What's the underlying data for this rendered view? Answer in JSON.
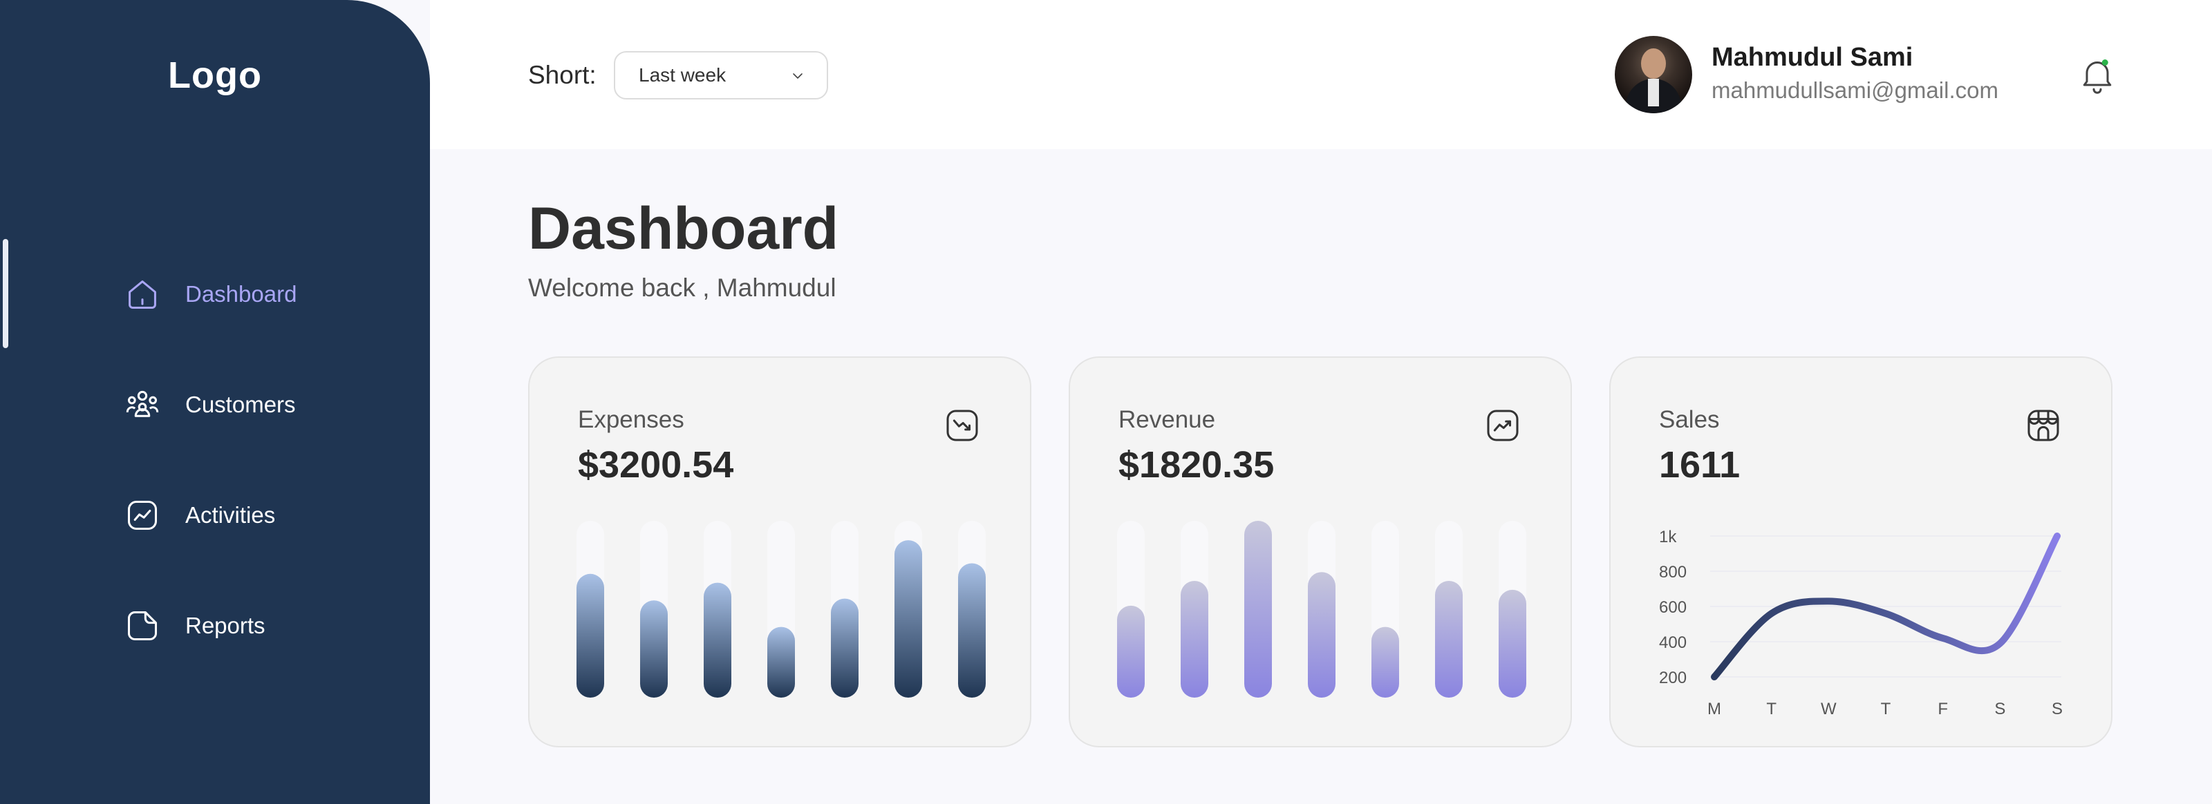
{
  "sidebar": {
    "logo": "Logo",
    "items": [
      {
        "label": "Dashboard",
        "icon": "home-icon",
        "active": true
      },
      {
        "label": "Customers",
        "icon": "users-icon",
        "active": false
      },
      {
        "label": "Activities",
        "icon": "activity-icon",
        "active": false
      },
      {
        "label": "Reports",
        "icon": "report-icon",
        "active": false
      }
    ]
  },
  "header": {
    "sort_label": "Short:",
    "sort_value": "Last week",
    "user_name": "Mahmudul Sami",
    "user_email": "mahmudullsami@gmail.com"
  },
  "main": {
    "title": "Dashboard",
    "subtitle": "Welcome back , Mahmudul"
  },
  "cards": [
    {
      "title": "Expenses",
      "value": "$3200.54",
      "icon": "trend-down-icon"
    },
    {
      "title": "Revenue",
      "value": "$1820.35",
      "icon": "trend-up-icon"
    },
    {
      "title": "Sales",
      "value": "1611",
      "icon": "store-icon"
    }
  ],
  "colors": {
    "sidebar_bg": "#1f3552",
    "active_nav": "#a9a6f5",
    "expenses_bar_top": "#a9c1e6",
    "expenses_bar_bottom": "#1f3552",
    "revenue_bar_top": "#bdbdd6",
    "revenue_bar_bottom": "#8a84e0",
    "sales_line_start": "#2a3a5e",
    "sales_line_end": "#8a7fe8",
    "notification_dot": "#2bb34a"
  },
  "chart_data": [
    {
      "type": "bar",
      "name": "Expenses",
      "values": [
        0.7,
        0.55,
        0.65,
        0.4,
        0.56,
        0.89,
        0.76
      ],
      "max": 1
    },
    {
      "type": "bar",
      "name": "Revenue",
      "values": [
        0.52,
        0.66,
        1.0,
        0.71,
        0.4,
        0.66,
        0.61
      ],
      "max": 1
    },
    {
      "type": "line",
      "name": "Sales",
      "categories": [
        "M",
        "T",
        "W",
        "T",
        "F",
        "S",
        "S"
      ],
      "values": [
        200,
        560,
        630,
        560,
        420,
        390,
        1000
      ],
      "yticks": [
        "1k",
        "800",
        "600",
        "400",
        "200"
      ],
      "ylim": [
        200,
        1000
      ]
    }
  ]
}
